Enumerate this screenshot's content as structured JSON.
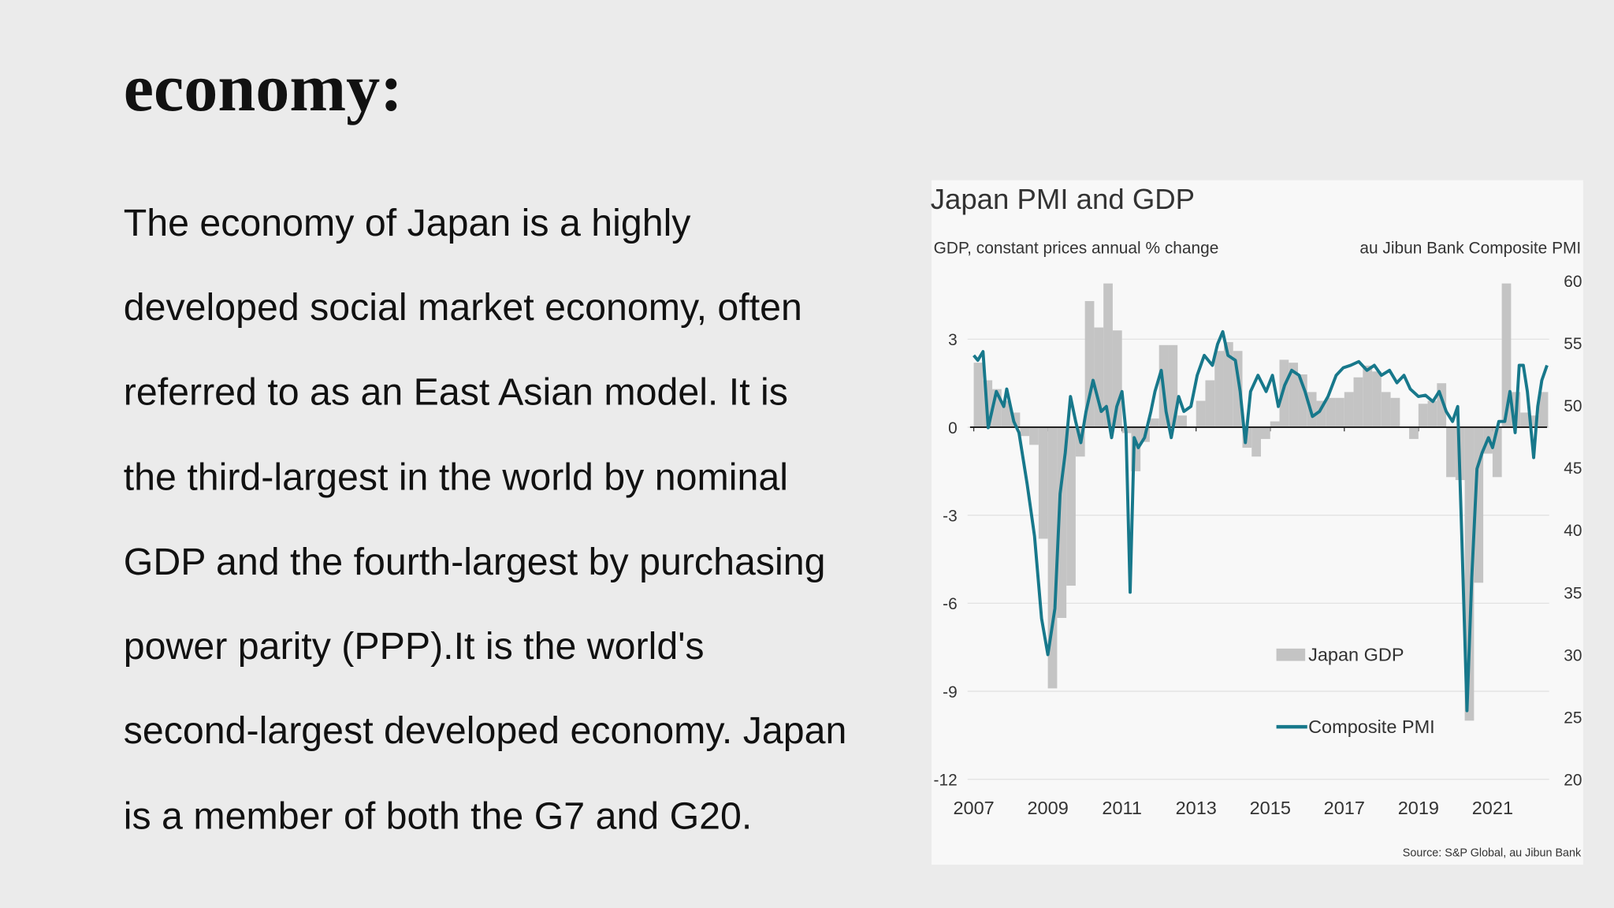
{
  "header": {
    "title": "economy:"
  },
  "body": {
    "lines": [
      "The economy of Japan is a highly",
      "developed social market economy, often",
      "referred to as an East Asian model. It is",
      "the third-largest in the world by nominal",
      "GDP and the fourth-largest by purchasing",
      "power parity (PPP).It is the world's",
      "second-largest developed economy. Japan",
      "is a member of both the G7 and G20."
    ]
  },
  "chart_data": {
    "type": "bar",
    "title": "Japan PMI and GDP",
    "ylabel": "GDP, constant prices annual % change",
    "y2label": "au Jibun Bank Composite PMI",
    "source": "Source: S&P Global, au Jibun Bank",
    "xlim": [
      2006.9,
      2022.6
    ],
    "xticks": [
      2007,
      2009,
      2011,
      2013,
      2015,
      2017,
      2019,
      2021
    ],
    "ylim": [
      -12,
      5
    ],
    "yticks": [
      -12,
      -9,
      -6,
      -3,
      0,
      3
    ],
    "y2lim": [
      20,
      60
    ],
    "y2ticks": [
      20,
      25,
      30,
      35,
      40,
      45,
      50,
      55,
      60
    ],
    "grid": true,
    "legend": "lower right",
    "series": [
      {
        "name": "Japan GDP",
        "type": "bar",
        "color": "#c4c4c4",
        "x": [
          2007,
          2007.25,
          2007.5,
          2007.75,
          2008,
          2008.25,
          2008.5,
          2008.75,
          2009,
          2009.25,
          2009.5,
          2009.75,
          2010,
          2010.25,
          2010.5,
          2010.75,
          2011,
          2011.25,
          2011.5,
          2011.75,
          2012,
          2012.25,
          2012.5,
          2012.75,
          2013,
          2013.25,
          2013.5,
          2013.75,
          2014,
          2014.25,
          2014.5,
          2014.75,
          2015,
          2015.25,
          2015.5,
          2015.75,
          2016,
          2016.25,
          2016.5,
          2016.75,
          2017,
          2017.25,
          2017.5,
          2017.75,
          2018,
          2018.25,
          2018.5,
          2018.75,
          2019,
          2019.25,
          2019.5,
          2019.75,
          2020,
          2020.25,
          2020.5,
          2020.75,
          2021,
          2021.25,
          2021.5,
          2021.75,
          2022,
          2022.25
        ],
        "values": [
          2.2,
          1.6,
          1.3,
          0.9,
          0.5,
          -0.3,
          -0.6,
          -3.8,
          -8.9,
          -6.5,
          -5.4,
          -1.0,
          4.3,
          3.4,
          4.9,
          3.3,
          -0.2,
          -1.5,
          -0.5,
          0.3,
          2.8,
          2.8,
          0.4,
          0.0,
          0.9,
          1.6,
          2.6,
          2.9,
          2.6,
          -0.7,
          -1.0,
          -0.4,
          0.2,
          2.3,
          2.2,
          1.8,
          1.2,
          0.9,
          1.0,
          1.0,
          1.2,
          1.7,
          2.1,
          1.9,
          1.2,
          1.0,
          0.0,
          -0.4,
          0.8,
          0.9,
          1.5,
          -1.7,
          -1.8,
          -10.0,
          -5.3,
          -0.9,
          -1.7,
          4.9,
          1.2,
          0.5,
          0.4,
          1.2
        ]
      },
      {
        "name": "Composite PMI",
        "type": "line",
        "axis": "y2",
        "color": "#17788b",
        "x": [
          2007.0,
          2007.11,
          2007.25,
          2007.39,
          2007.61,
          2007.81,
          2007.89,
          2008.08,
          2008.22,
          2008.44,
          2008.64,
          2008.83,
          2009.0,
          2009.19,
          2009.33,
          2009.47,
          2009.61,
          2009.75,
          2009.89,
          2010.03,
          2010.22,
          2010.44,
          2010.58,
          2010.72,
          2010.86,
          2011.0,
          2011.11,
          2011.22,
          2011.33,
          2011.44,
          2011.61,
          2011.78,
          2011.89,
          2012.06,
          2012.19,
          2012.33,
          2012.53,
          2012.67,
          2012.86,
          2013.03,
          2013.22,
          2013.44,
          2013.58,
          2013.72,
          2013.86,
          2014.06,
          2014.19,
          2014.33,
          2014.47,
          2014.67,
          2014.89,
          2015.06,
          2015.22,
          2015.39,
          2015.58,
          2015.78,
          2015.94,
          2016.14,
          2016.33,
          2016.56,
          2016.78,
          2016.97,
          2017.17,
          2017.39,
          2017.61,
          2017.81,
          2018.0,
          2018.22,
          2018.42,
          2018.61,
          2018.78,
          2019.0,
          2019.19,
          2019.39,
          2019.56,
          2019.75,
          2019.92,
          2020.06,
          2020.17,
          2020.31,
          2020.44,
          2020.58,
          2020.72,
          2020.89,
          2021.0,
          2021.17,
          2021.33,
          2021.47,
          2021.61,
          2021.72,
          2021.83,
          2021.94,
          2022.11,
          2022.22,
          2022.33,
          2022.47
        ],
        "values": [
          54.0,
          53.6,
          54.3,
          48.2,
          51.1,
          49.9,
          51.3,
          48.7,
          47.8,
          43.7,
          39.5,
          32.9,
          30.0,
          33.7,
          42.9,
          46.2,
          50.7,
          48.7,
          47.0,
          49.5,
          52.0,
          49.5,
          49.9,
          47.4,
          49.9,
          51.1,
          47.8,
          35.0,
          47.4,
          46.6,
          47.4,
          49.5,
          51.1,
          52.8,
          49.5,
          47.4,
          50.7,
          49.5,
          49.9,
          52.4,
          54.0,
          53.2,
          54.9,
          55.9,
          54.0,
          53.6,
          51.1,
          47.0,
          51.1,
          52.4,
          51.1,
          52.4,
          49.9,
          51.6,
          52.8,
          52.4,
          51.1,
          49.1,
          49.5,
          50.7,
          52.4,
          53.0,
          53.2,
          53.5,
          52.8,
          53.2,
          52.4,
          52.8,
          51.8,
          52.4,
          51.3,
          50.7,
          50.8,
          50.3,
          51.1,
          49.5,
          48.7,
          49.9,
          39.5,
          25.5,
          36.2,
          44.9,
          46.2,
          47.4,
          46.6,
          48.7,
          48.7,
          51.1,
          47.8,
          53.2,
          53.2,
          51.1,
          45.8,
          49.9,
          52.0,
          53.2
        ]
      }
    ]
  }
}
